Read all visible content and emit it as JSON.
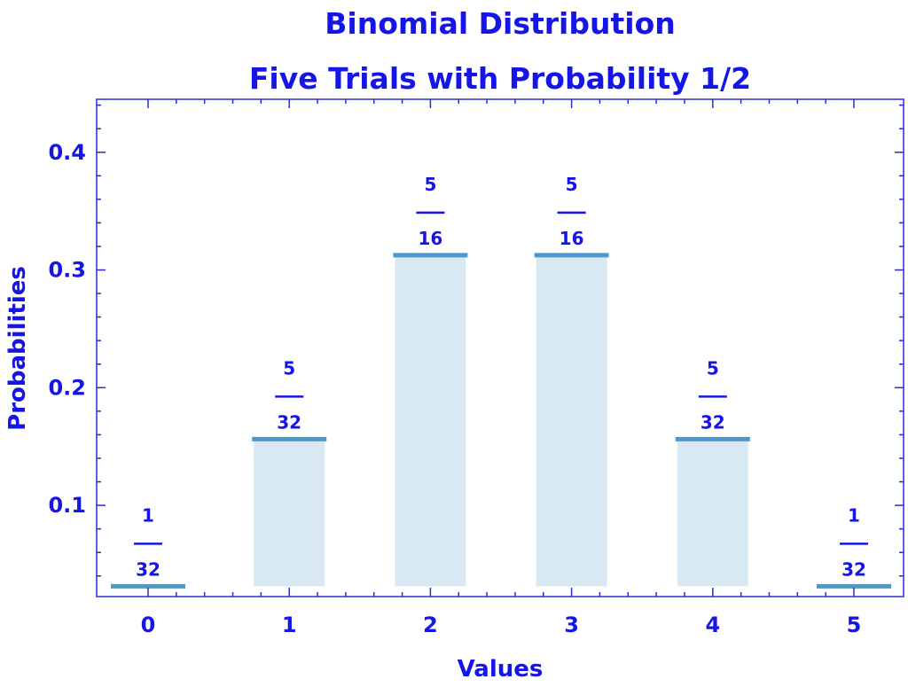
{
  "chart_data": {
    "type": "bar",
    "title": "Binomial Distribution",
    "subtitle": "Five Trials with Probability 1/2",
    "xlabel": "Values",
    "ylabel": "Probabilities",
    "categories": [
      "0",
      "1",
      "2",
      "3",
      "4",
      "5"
    ],
    "values": [
      0.03125,
      0.15625,
      0.3125,
      0.3125,
      0.15625,
      0.03125
    ],
    "data_labels": [
      {
        "numerator": "1",
        "denominator": "32"
      },
      {
        "numerator": "5",
        "denominator": "32"
      },
      {
        "numerator": "5",
        "denominator": "16"
      },
      {
        "numerator": "5",
        "denominator": "16"
      },
      {
        "numerator": "5",
        "denominator": "32"
      },
      {
        "numerator": "1",
        "denominator": "32"
      }
    ],
    "ylim": [
      0.0225,
      0.445
    ],
    "bar_base": 0.03125,
    "y_ticks": [
      {
        "value": 0.1,
        "label": "0.1"
      },
      {
        "value": 0.2,
        "label": "0.2"
      },
      {
        "value": 0.3,
        "label": "0.3"
      },
      {
        "value": 0.4,
        "label": "0.4"
      }
    ],
    "grid": false,
    "legend": "none",
    "colors": {
      "text": "#1515e6",
      "frame": "#2a2ad6",
      "bar_fill": "#d8e9f3",
      "bar_top": "#4a9acc"
    }
  }
}
